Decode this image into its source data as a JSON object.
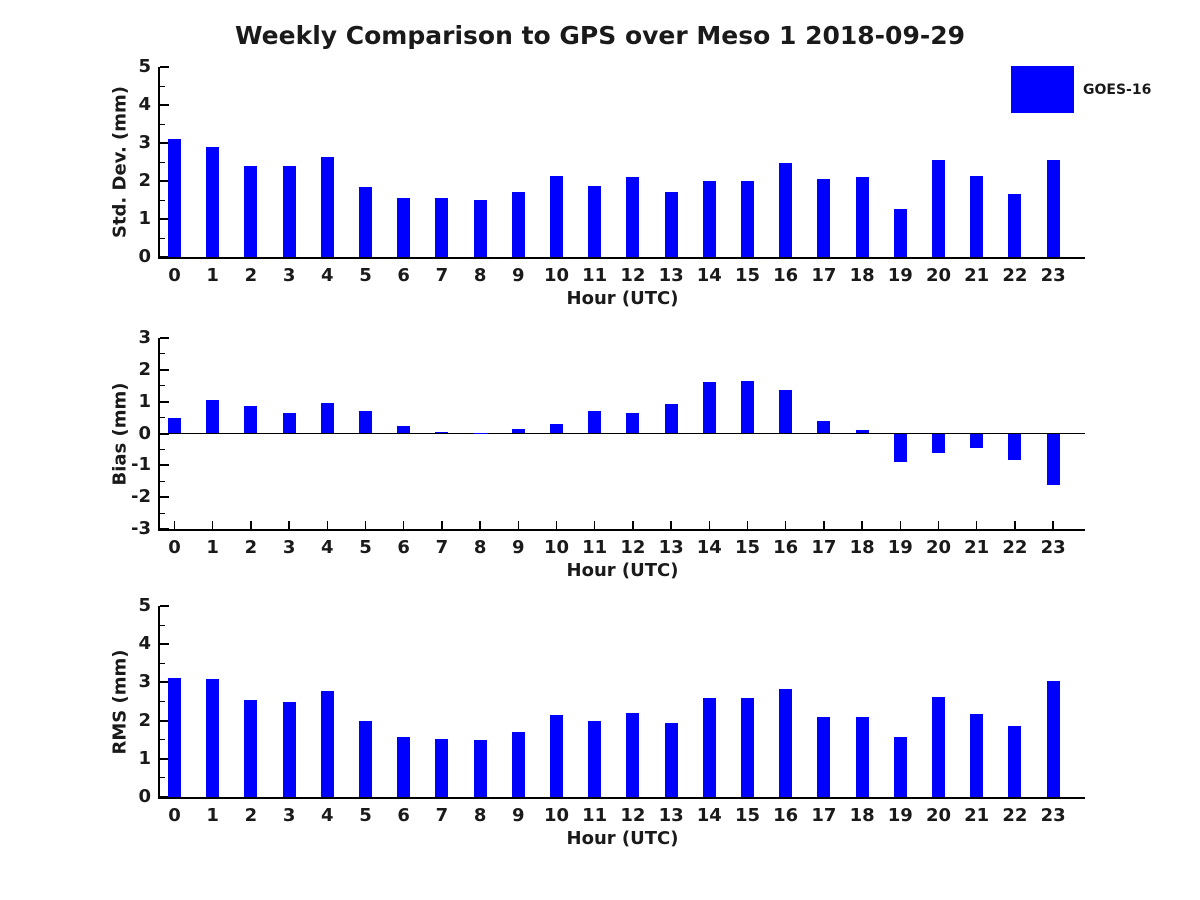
{
  "title": "Weekly Comparison to GPS over Meso 1 2018-09-29",
  "legend": {
    "label": "GOES-16",
    "color": "#0000FF"
  },
  "chart_data": [
    {
      "type": "bar",
      "name": "std-dev",
      "series_name": "GOES-16",
      "ylabel": "Std. Dev. (mm)",
      "xlabel": "Hour (UTC)",
      "categories": [
        0,
        1,
        2,
        3,
        4,
        5,
        6,
        7,
        8,
        9,
        10,
        11,
        12,
        13,
        14,
        15,
        16,
        17,
        18,
        19,
        20,
        21,
        22,
        23
      ],
      "values": [
        3.1,
        2.9,
        2.4,
        2.4,
        2.62,
        1.85,
        1.55,
        1.55,
        1.5,
        1.7,
        2.13,
        1.88,
        2.1,
        1.72,
        2.0,
        2.0,
        2.47,
        2.05,
        2.1,
        1.27,
        2.55,
        2.13,
        1.65,
        2.55
      ],
      "ylim": [
        0,
        5
      ],
      "yticks": [
        0,
        1,
        2,
        3,
        4,
        5
      ],
      "minor_tick_step": 0.5,
      "grid": false,
      "bar_color": "#0000FF"
    },
    {
      "type": "bar",
      "name": "bias",
      "series_name": "GOES-16",
      "ylabel": "Bias (mm)",
      "xlabel": "Hour (UTC)",
      "categories": [
        0,
        1,
        2,
        3,
        4,
        5,
        6,
        7,
        8,
        9,
        10,
        11,
        12,
        13,
        14,
        15,
        16,
        17,
        18,
        19,
        20,
        21,
        22,
        23
      ],
      "values": [
        0.5,
        1.05,
        0.85,
        0.63,
        0.97,
        0.7,
        0.22,
        0.05,
        0.02,
        0.13,
        0.3,
        0.72,
        0.63,
        0.94,
        1.62,
        1.65,
        1.38,
        0.38,
        0.12,
        -0.88,
        -0.6,
        -0.45,
        -0.84,
        -1.62
      ],
      "ylim": [
        -3,
        3
      ],
      "yticks": [
        -3,
        -2,
        -1,
        0,
        1,
        2,
        3
      ],
      "minor_tick_step": 0.5,
      "grid": false,
      "bar_color": "#0000FF"
    },
    {
      "type": "bar",
      "name": "rms",
      "series_name": "GOES-16",
      "ylabel": "RMS (mm)",
      "xlabel": "Hour (UTC)",
      "categories": [
        0,
        1,
        2,
        3,
        4,
        5,
        6,
        7,
        8,
        9,
        10,
        11,
        12,
        13,
        14,
        15,
        16,
        17,
        18,
        19,
        20,
        21,
        22,
        23
      ],
      "values": [
        3.12,
        3.08,
        2.53,
        2.5,
        2.78,
        2.0,
        1.56,
        1.53,
        1.5,
        1.71,
        2.15,
        2.0,
        2.2,
        1.95,
        2.58,
        2.6,
        2.82,
        2.1,
        2.1,
        1.58,
        2.62,
        2.17,
        1.86,
        3.03
      ],
      "ylim": [
        0,
        5
      ],
      "yticks": [
        0,
        1,
        2,
        3,
        4,
        5
      ],
      "minor_tick_step": 0.5,
      "grid": false,
      "bar_color": "#0000FF"
    }
  ]
}
